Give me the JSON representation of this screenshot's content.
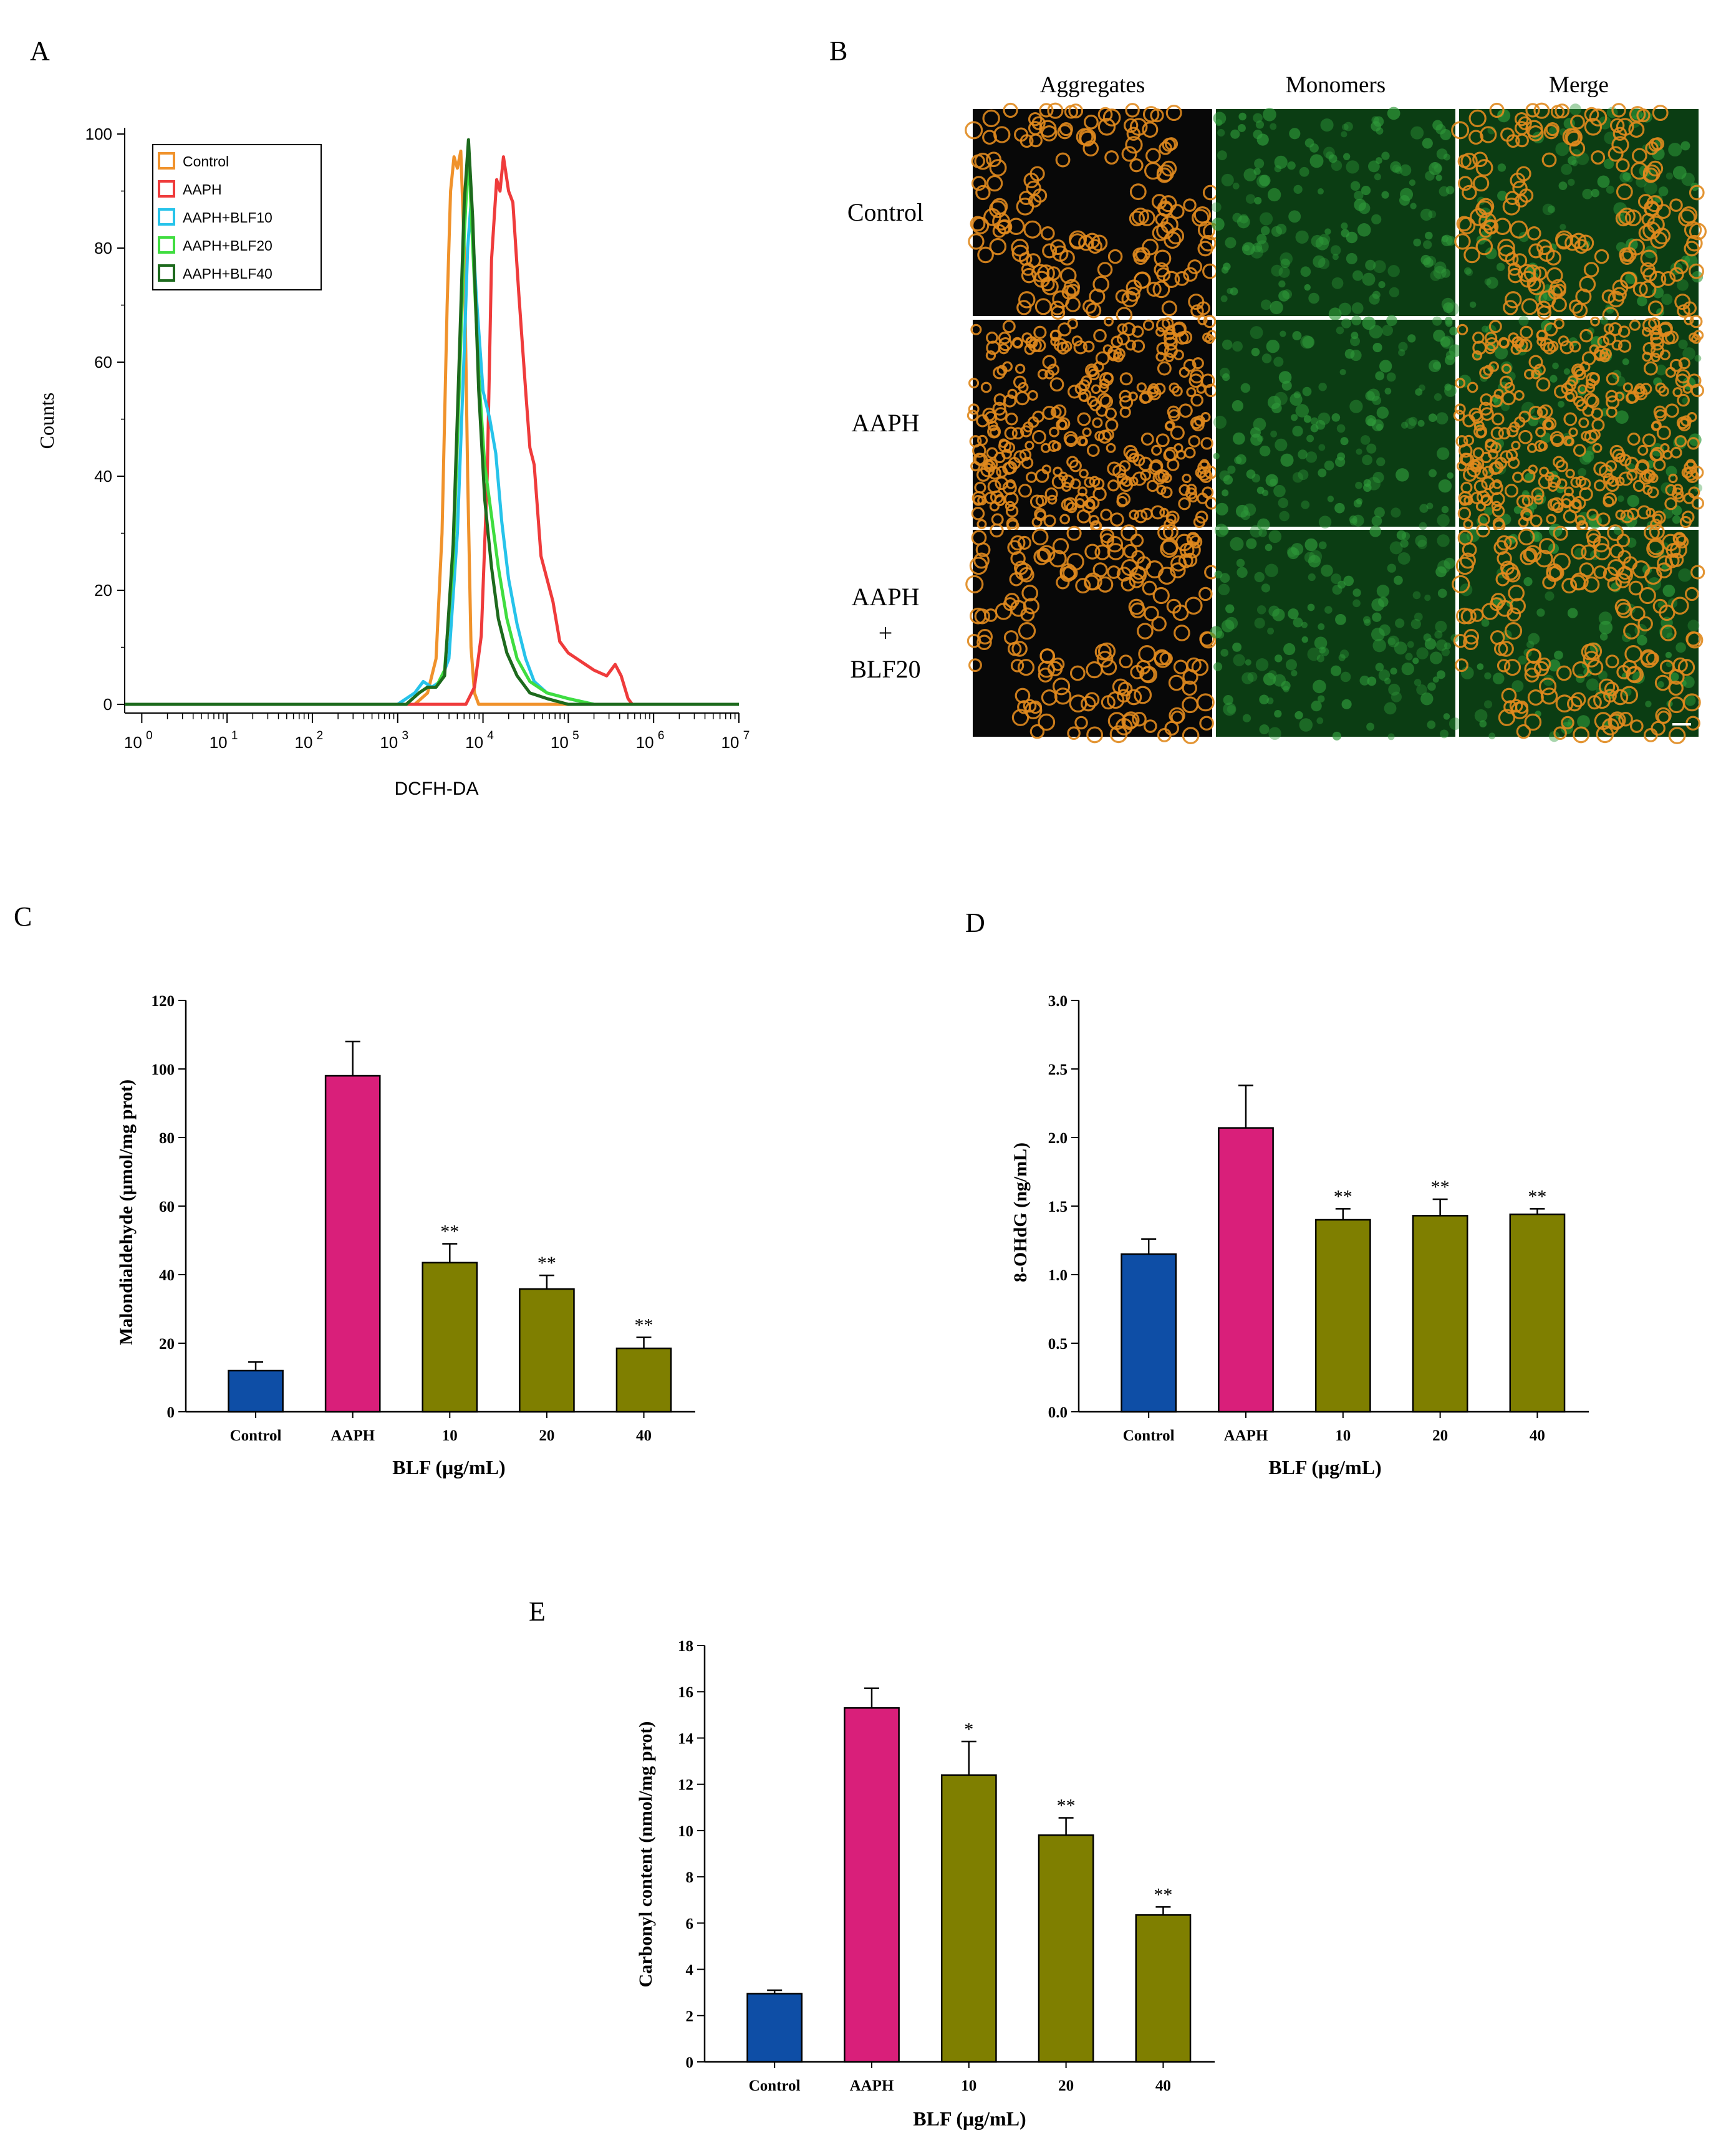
{
  "panels": {
    "A": {
      "letter": "A"
    },
    "B": {
      "letter": "B"
    },
    "C": {
      "letter": "C"
    },
    "D": {
      "letter": "D"
    },
    "E": {
      "letter": "E"
    }
  },
  "micrograph": {
    "columns": [
      "Aggregates",
      "Monomers",
      "Merge"
    ],
    "rows": [
      {
        "lines": [
          "Control"
        ]
      },
      {
        "lines": [
          "AAPH"
        ]
      },
      {
        "lines": [
          "AAPH",
          "+",
          "BLF20"
        ]
      }
    ],
    "colors": {
      "aggregate": "#e0891e",
      "monomer": "#2f9a3a",
      "background": "#080808",
      "green_bg": "#0b3d13"
    }
  },
  "chart_data": [
    {
      "id": "A",
      "type": "line",
      "title": "",
      "xlabel": "DCFH-DA",
      "ylabel": "Counts",
      "xscale": "log",
      "xlim_log10": [
        -0.2,
        7
      ],
      "ylim": [
        0,
        100
      ],
      "x_ticks": [
        {
          "label": "10",
          "exp": "0",
          "at": 0
        },
        {
          "label": "10",
          "exp": "1",
          "at": 1
        },
        {
          "label": "10",
          "exp": "2",
          "at": 2
        },
        {
          "label": "10",
          "exp": "3",
          "at": 3
        },
        {
          "label": "10",
          "exp": "4",
          "at": 4
        },
        {
          "label": "10",
          "exp": "5",
          "at": 5
        },
        {
          "label": "10",
          "exp": "6",
          "at": 6
        },
        {
          "label": "10",
          "exp": "7",
          "at": 7
        }
      ],
      "y_ticks": [
        "0",
        "20",
        "40",
        "60",
        "80",
        "100"
      ],
      "legend_position": "top-left",
      "series": [
        {
          "name": "Control",
          "color": "#f0922b",
          "points": [
            [
              -0.2,
              0
            ],
            [
              3.2,
              0
            ],
            [
              3.35,
              2
            ],
            [
              3.45,
              8
            ],
            [
              3.52,
              30
            ],
            [
              3.58,
              70
            ],
            [
              3.62,
              90
            ],
            [
              3.66,
              96
            ],
            [
              3.7,
              94
            ],
            [
              3.74,
              97
            ],
            [
              3.78,
              80
            ],
            [
              3.82,
              40
            ],
            [
              3.86,
              10
            ],
            [
              3.9,
              2
            ],
            [
              3.95,
              0
            ],
            [
              7,
              0
            ]
          ]
        },
        {
          "name": "AAPH",
          "color": "#ef3b3b",
          "points": [
            [
              -0.2,
              0
            ],
            [
              3.8,
              0
            ],
            [
              3.9,
              3
            ],
            [
              3.98,
              12
            ],
            [
              4.05,
              40
            ],
            [
              4.1,
              78
            ],
            [
              4.16,
              92
            ],
            [
              4.2,
              90
            ],
            [
              4.24,
              96
            ],
            [
              4.3,
              90
            ],
            [
              4.35,
              88
            ],
            [
              4.42,
              72
            ],
            [
              4.5,
              55
            ],
            [
              4.55,
              45
            ],
            [
              4.6,
              42
            ],
            [
              4.68,
              26
            ],
            [
              4.75,
              22
            ],
            [
              4.82,
              18
            ],
            [
              4.9,
              11
            ],
            [
              5.0,
              9
            ],
            [
              5.1,
              8
            ],
            [
              5.2,
              7
            ],
            [
              5.3,
              6
            ],
            [
              5.45,
              5
            ],
            [
              5.55,
              7
            ],
            [
              5.62,
              5
            ],
            [
              5.7,
              1
            ],
            [
              5.75,
              0
            ],
            [
              7,
              0
            ]
          ]
        },
        {
          "name": "AAPH+BLF10",
          "color": "#26c3ea",
          "points": [
            [
              -0.2,
              0
            ],
            [
              3.0,
              0
            ],
            [
              3.2,
              2
            ],
            [
              3.3,
              4
            ],
            [
              3.4,
              3
            ],
            [
              3.5,
              4
            ],
            [
              3.6,
              8
            ],
            [
              3.7,
              30
            ],
            [
              3.78,
              62
            ],
            [
              3.82,
              80
            ],
            [
              3.86,
              88
            ],
            [
              3.92,
              72
            ],
            [
              4.0,
              55
            ],
            [
              4.08,
              50
            ],
            [
              4.15,
              44
            ],
            [
              4.22,
              32
            ],
            [
              4.3,
              22
            ],
            [
              4.4,
              14
            ],
            [
              4.5,
              8
            ],
            [
              4.6,
              4
            ],
            [
              4.75,
              2
            ],
            [
              5.0,
              1
            ],
            [
              5.3,
              0
            ],
            [
              7,
              0
            ]
          ]
        },
        {
          "name": "AAPH+BLF20",
          "color": "#3fdd3f",
          "points": [
            [
              -0.2,
              0
            ],
            [
              3.1,
              0
            ],
            [
              3.25,
              2
            ],
            [
              3.35,
              3
            ],
            [
              3.45,
              3
            ],
            [
              3.55,
              6
            ],
            [
              3.65,
              25
            ],
            [
              3.72,
              55
            ],
            [
              3.78,
              82
            ],
            [
              3.83,
              97
            ],
            [
              3.88,
              80
            ],
            [
              3.95,
              58
            ],
            [
              4.02,
              42
            ],
            [
              4.1,
              33
            ],
            [
              4.18,
              24
            ],
            [
              4.28,
              15
            ],
            [
              4.4,
              8
            ],
            [
              4.55,
              4
            ],
            [
              4.75,
              2
            ],
            [
              5.0,
              1
            ],
            [
              5.3,
              0
            ],
            [
              7,
              0
            ]
          ]
        },
        {
          "name": "AAPH+BLF40",
          "color": "#1d6a1d",
          "points": [
            [
              -0.2,
              0
            ],
            [
              3.1,
              0
            ],
            [
              3.25,
              2
            ],
            [
              3.35,
              3
            ],
            [
              3.45,
              3
            ],
            [
              3.55,
              5
            ],
            [
              3.65,
              28
            ],
            [
              3.72,
              60
            ],
            [
              3.78,
              88
            ],
            [
              3.83,
              99
            ],
            [
              3.88,
              85
            ],
            [
              3.95,
              55
            ],
            [
              4.02,
              36
            ],
            [
              4.1,
              24
            ],
            [
              4.18,
              15
            ],
            [
              4.28,
              9
            ],
            [
              4.4,
              5
            ],
            [
              4.55,
              2
            ],
            [
              4.75,
              1
            ],
            [
              5.0,
              0
            ],
            [
              7,
              0
            ]
          ]
        }
      ]
    },
    {
      "id": "C",
      "type": "bar",
      "title": "",
      "xlabel": "BLF (μg/mL)",
      "ylabel": "Malondialdehyde (μmol/mg prot)",
      "ylim": [
        0,
        120
      ],
      "y_ticks": [
        "0",
        "20",
        "40",
        "60",
        "80",
        "100",
        "120"
      ],
      "categories": [
        "Control",
        "AAPH",
        "10",
        "20",
        "40"
      ],
      "values": [
        12,
        98,
        43.5,
        35.8,
        18.5
      ],
      "errors": [
        2.5,
        10,
        5.5,
        4,
        3.2
      ],
      "annotations": [
        "",
        "",
        "**",
        "**",
        "**"
      ],
      "colors": [
        "#0e4ea6",
        "#d91f7a",
        "#7f7f00",
        "#7f7f00",
        "#7f7f00"
      ]
    },
    {
      "id": "D",
      "type": "bar",
      "title": "",
      "xlabel": "BLF (μg/mL)",
      "ylabel": "8-OHdG (ng/mL)",
      "ylim": [
        0,
        3.0
      ],
      "y_ticks": [
        "0.0",
        "0.5",
        "1.0",
        "1.5",
        "2.0",
        "2.5",
        "3.0"
      ],
      "categories": [
        "Control",
        "AAPH",
        "10",
        "20",
        "40"
      ],
      "values": [
        1.15,
        2.07,
        1.4,
        1.43,
        1.44
      ],
      "errors": [
        0.11,
        0.31,
        0.08,
        0.12,
        0.04
      ],
      "annotations": [
        "",
        "",
        "**",
        "**",
        "**"
      ],
      "colors": [
        "#0e4ea6",
        "#d91f7a",
        "#7f7f00",
        "#7f7f00",
        "#7f7f00"
      ]
    },
    {
      "id": "E",
      "type": "bar",
      "title": "",
      "xlabel": "BLF (μg/mL)",
      "ylabel": "Carbonyl content (nmol/mg prot)",
      "ylim": [
        0,
        18
      ],
      "y_ticks": [
        "0",
        "2",
        "4",
        "6",
        "8",
        "10",
        "12",
        "14",
        "16",
        "18"
      ],
      "categories": [
        "Control",
        "AAPH",
        "10",
        "20",
        "40"
      ],
      "values": [
        2.95,
        15.3,
        12.4,
        9.8,
        6.35
      ],
      "errors": [
        0.15,
        0.85,
        1.45,
        0.75,
        0.35
      ],
      "annotations": [
        "",
        "",
        "*",
        "**",
        "**"
      ],
      "colors": [
        "#0e4ea6",
        "#d91f7a",
        "#7f7f00",
        "#7f7f00",
        "#7f7f00"
      ]
    }
  ]
}
